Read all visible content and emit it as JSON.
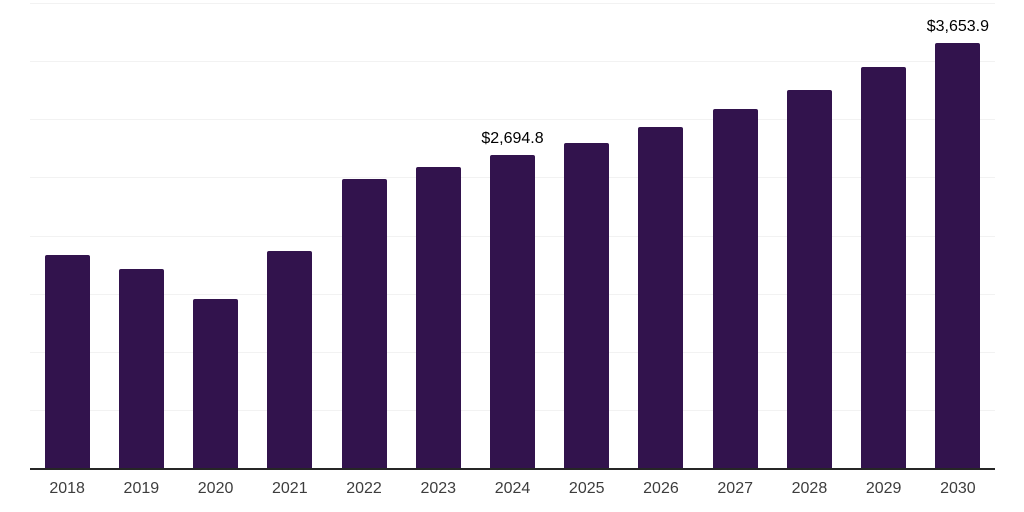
{
  "chart_data": {
    "type": "bar",
    "title": "",
    "xlabel": "",
    "ylabel": "",
    "categories": [
      "2018",
      "2019",
      "2020",
      "2021",
      "2022",
      "2023",
      "2024",
      "2025",
      "2026",
      "2027",
      "2028",
      "2029",
      "2030"
    ],
    "values": [
      1830,
      1715,
      1450,
      1865,
      2490,
      2590,
      2694.8,
      2800,
      2935,
      3090,
      3255,
      3450,
      3653.9
    ],
    "annotations": [
      {
        "category": "2024",
        "text": "$2,694.8"
      },
      {
        "category": "2030",
        "text": "$3,653.9"
      }
    ],
    "ylim": [
      0,
      4000
    ],
    "grid_step": 500,
    "grid": true,
    "legend": false,
    "colors": {
      "bar": "#32134D",
      "axis": "#262626",
      "gridline": "#f2f2f2",
      "data_label": "#000000",
      "tick_label": "#3d3d3d",
      "background": "#ffffff"
    }
  }
}
